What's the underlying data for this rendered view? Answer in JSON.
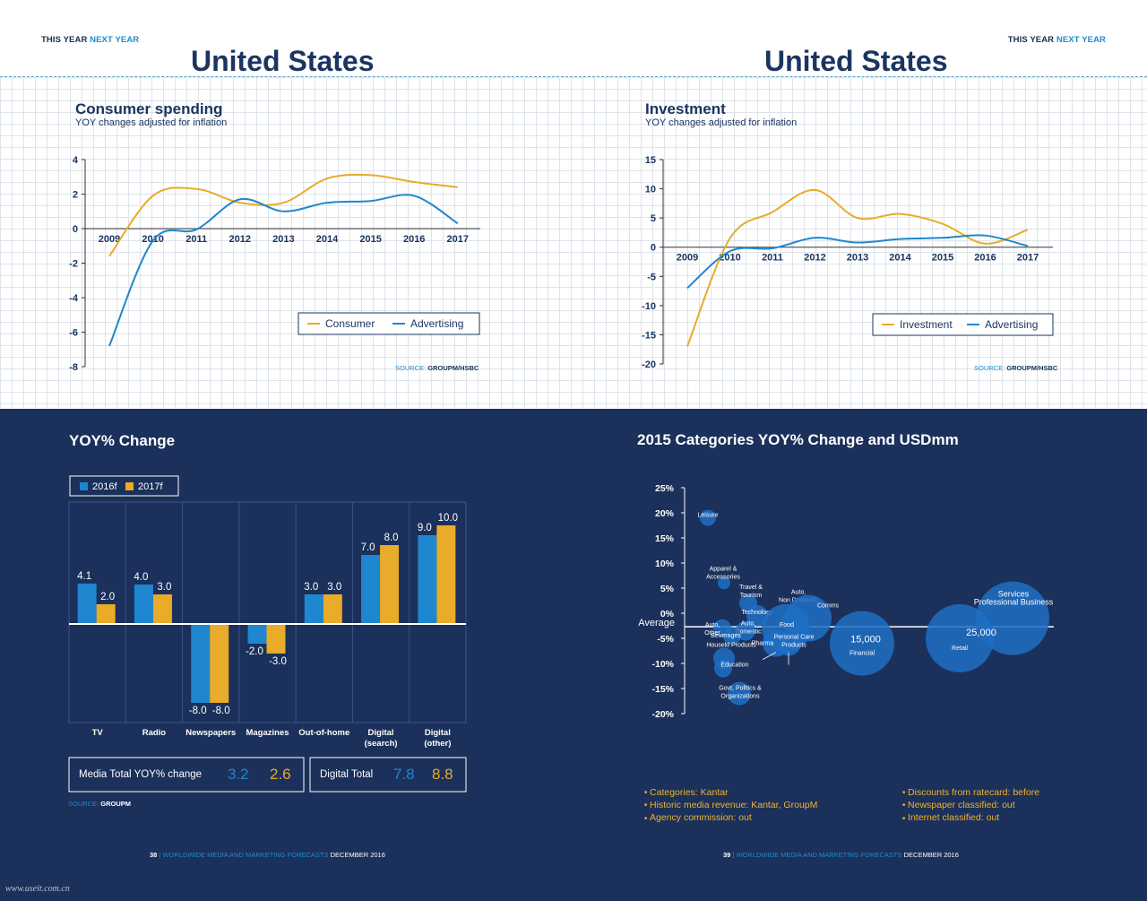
{
  "header": {
    "left": {
      "this_year": "THIS YEAR",
      "next_year": "NEXT YEAR",
      "country": "United States"
    },
    "right": {
      "this_year": "THIS YEAR",
      "next_year": "NEXT YEAR",
      "country": "United States"
    }
  },
  "colors": {
    "navy": "#1b305a",
    "blue": "#1f87cf",
    "gold": "#e9ab2a",
    "heading": "#1a3560"
  },
  "chart_data": [
    {
      "type": "line",
      "title": "Consumer spending",
      "subtitle": "YOY changes adjusted for inflation",
      "x": [
        "2009",
        "2010",
        "2011",
        "2012",
        "2013",
        "2014",
        "2015",
        "2016",
        "2017"
      ],
      "series": [
        {
          "name": "Consumer",
          "values": [
            -1.6,
            1.9,
            2.3,
            1.5,
            1.5,
            2.9,
            3.1,
            2.7,
            2.4
          ]
        },
        {
          "name": "Advertising",
          "values": [
            -6.8,
            -0.7,
            -0.05,
            1.7,
            1.0,
            1.5,
            1.6,
            1.9,
            0.3
          ]
        }
      ],
      "ylim": [
        -8,
        4
      ],
      "yticks": [
        "4",
        "2",
        "0",
        "-2",
        "-4",
        "-6",
        "-8"
      ],
      "legend_position": "bottom-right",
      "grid": true,
      "source_label": "SOURCE:",
      "source": "GROUPM/HSBC"
    },
    {
      "type": "line",
      "title": "Investment",
      "subtitle": "YOY changes adjusted for inflation",
      "x": [
        "2009",
        "2010",
        "2011",
        "2012",
        "2013",
        "2014",
        "2015",
        "2016",
        "2017"
      ],
      "series": [
        {
          "name": "Investment",
          "values": [
            -17,
            1.5,
            6.0,
            9.8,
            5.0,
            5.7,
            4.0,
            0.6,
            3.0
          ]
        },
        {
          "name": "Advertising",
          "values": [
            -7,
            -0.7,
            -0.2,
            1.6,
            0.8,
            1.4,
            1.6,
            2.0,
            0.2
          ]
        }
      ],
      "ylim": [
        -20,
        15
      ],
      "yticks": [
        "15",
        "10",
        "5",
        "0",
        "-5",
        "-10",
        "-15",
        "-20"
      ],
      "legend_position": "bottom-right",
      "grid": true,
      "source_label": "SOURCE:",
      "source": "GROUPM/HSBC"
    },
    {
      "type": "bar",
      "title": "YOY% Change",
      "categories": [
        "TV",
        "Radio",
        "Newspapers",
        "Magazines",
        "Out-of-home",
        "Digital\n(search)",
        "Digital\n(other)"
      ],
      "series": [
        {
          "name": "2016f",
          "values": [
            4.1,
            4.0,
            -8.0,
            -2.0,
            3.0,
            7.0,
            9.0
          ]
        },
        {
          "name": "2017f",
          "values": [
            2.0,
            3.0,
            -8.0,
            -3.0,
            3.0,
            8.0,
            10.0
          ]
        }
      ],
      "labels_2016": [
        "4.1",
        "4.0",
        "-8.0",
        "-2.0",
        "3.0",
        "7.0",
        "9.0"
      ],
      "labels_2017": [
        "2.0",
        "3.0",
        "-8.0",
        "-3.0",
        "3.0",
        "8.0",
        "10.0"
      ],
      "ylim": [
        -10,
        11
      ],
      "legend_position": "top-left",
      "totals": [
        {
          "label": "Media Total YOY% change",
          "v2016": "3.2",
          "v2017": "2.6"
        },
        {
          "label": "Digital Total",
          "v2016": "7.8",
          "v2017": "8.8"
        }
      ],
      "source_label": "SOURCE:",
      "source": "GROUPM"
    },
    {
      "type": "scatter",
      "title": "2015 Categories YOY% Change and USDmm",
      "yticks": [
        "25%",
        "20%",
        "15%",
        "10%",
        "5%",
        "0%",
        "-5%",
        "-10%",
        "-15%",
        "-20%"
      ],
      "ylim": [
        -20,
        25
      ],
      "average_label": "Average",
      "bubbles": [
        {
          "name": "Leisure",
          "y": 19
        },
        {
          "name": "Apparel & Accessories",
          "y": 6
        },
        {
          "name": "Travel & Tourism",
          "y": 2
        },
        {
          "name": "Technology",
          "y": -0.5
        },
        {
          "name": "Auto, Non Domestic",
          "y": -1.5
        },
        {
          "name": "Comms",
          "y": -1
        },
        {
          "name": "Auto, Other",
          "y": -3
        },
        {
          "name": "Auto, Domestic",
          "y": -3.5
        },
        {
          "name": "Food",
          "y": -3
        },
        {
          "name": "Beverages",
          "y": -4.5
        },
        {
          "name": "Pharma",
          "y": -6
        },
        {
          "name": "Houseld Products",
          "y": -9
        },
        {
          "name": "Education",
          "y": -11
        },
        {
          "name": "Personal Care Products",
          "y": -6
        },
        {
          "name": "Govt, Politics & Organizations",
          "y": -16
        },
        {
          "name": "Financial",
          "y": -6
        },
        {
          "name": "Retail",
          "y": -5
        },
        {
          "name": "Services Professional Business",
          "y": -1
        }
      ],
      "size_labels": [
        "15,000",
        "25,000"
      ],
      "notes_left": [
        "Categories: Kantar",
        "Historic media revenue: Kantar, GroupM",
        "Agency commission: out"
      ],
      "notes_right": [
        "Discounts from ratecard: before",
        "Newspaper classified: out",
        "Internet classified: out"
      ]
    }
  ],
  "footer": {
    "left": {
      "page": "38",
      "sep": "|",
      "pub": "WORLDWIDE MEDIA AND MARKETING FORECASTS",
      "date": "DECEMBER 2016"
    },
    "right": {
      "page": "39",
      "sep": "|",
      "pub": "WORLDWIDE MEDIA AND MARKETING FORECASTS",
      "date": "DECEMBER 2016"
    }
  },
  "watermark": "www.useit.com.cn"
}
